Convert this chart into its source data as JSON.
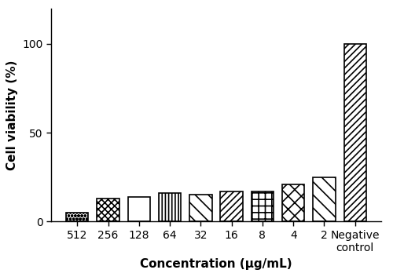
{
  "categories": [
    "512",
    "256",
    "128",
    "64",
    "32",
    "16",
    "8",
    "4",
    "2",
    "Negative\ncontrol"
  ],
  "values": [
    5,
    13,
    14,
    16,
    15,
    17,
    17,
    21,
    25,
    100
  ],
  "ylabel": "Cell viability (%)",
  "xlabel": "Concentration (µg/mL)",
  "ylim": [
    0,
    120
  ],
  "yticks": [
    0,
    50,
    100
  ],
  "bar_width": 0.72,
  "background_color": "#ffffff",
  "xlabel_fontsize": 11,
  "ylabel_fontsize": 11,
  "tick_fontsize": 10,
  "hatch_list": [
    "oooo",
    "xxxx",
    "====",
    "||||",
    "\\\\\\\\",
    "////",
    "++++",
    "xxxx",
    "\\\\\\\\",
    "////"
  ]
}
